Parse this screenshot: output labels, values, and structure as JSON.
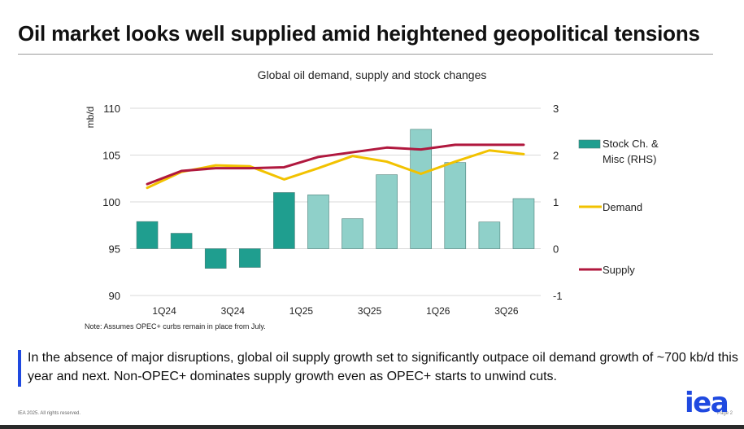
{
  "slide": {
    "title": "Oil market looks well supplied amid heightened geopolitical tensions",
    "note": "Note: Assumes OPEC+ curbs remain in place from July.",
    "callout": "In the absence of major disruptions, global oil supply growth set to significantly outpace oil demand growth of ~700 kb/d this year and next. Non-OPEC+ dominates supply growth even as OPEC+ starts to unwind cuts.",
    "footer": "IEA 2025. All rights reserved.",
    "page_label": "Page 2",
    "logo_text": "iea",
    "accent_color": "#1f49e0"
  },
  "chart_data": {
    "type": "bar",
    "title": "Global oil demand, supply and stock changes",
    "ylabel": "mb/d",
    "ylim": [
      90,
      110
    ],
    "y2lim": [
      -1,
      3
    ],
    "yticks": [
      "110",
      "105",
      "100",
      "95",
      "90"
    ],
    "y2ticks": [
      "3",
      "2",
      "1",
      "0",
      "-1"
    ],
    "categories": [
      "1Q24",
      "2Q24",
      "3Q24",
      "4Q24",
      "1Q25",
      "2Q25",
      "3Q25",
      "4Q25",
      "1Q26",
      "2Q26",
      "3Q26",
      "4Q26"
    ],
    "xtick_labels": [
      "1Q24",
      "",
      "3Q24",
      "",
      "1Q25",
      "",
      "3Q25",
      "",
      "1Q26",
      "",
      "3Q26",
      ""
    ],
    "legend_position": "right",
    "series": [
      {
        "name": "Stock Ch. & Misc (RHS)",
        "type": "bar",
        "axis": "right",
        "values": [
          0.58,
          0.33,
          -0.42,
          -0.4,
          1.2,
          1.15,
          0.64,
          1.58,
          2.55,
          1.84,
          0.57,
          1.07
        ],
        "colors": [
          "#1f9e8f",
          "#1f9e8f",
          "#1f9e8f",
          "#1f9e8f",
          "#1f9e8f",
          "#8fd0c9",
          "#8fd0c9",
          "#8fd0c9",
          "#8fd0c9",
          "#8fd0c9",
          "#8fd0c9",
          "#8fd0c9"
        ]
      },
      {
        "name": "Demand",
        "type": "line",
        "axis": "left",
        "color": "#f2c200",
        "values": [
          101.5,
          103.2,
          103.9,
          103.8,
          102.4,
          103.6,
          104.9,
          104.3,
          103.0,
          104.3,
          105.5,
          105.1
        ]
      },
      {
        "name": "Supply",
        "type": "line",
        "axis": "left",
        "color": "#b0183e",
        "values": [
          101.9,
          103.3,
          103.6,
          103.6,
          103.7,
          104.8,
          105.3,
          105.8,
          105.6,
          106.1,
          106.1,
          106.1
        ]
      }
    ]
  }
}
